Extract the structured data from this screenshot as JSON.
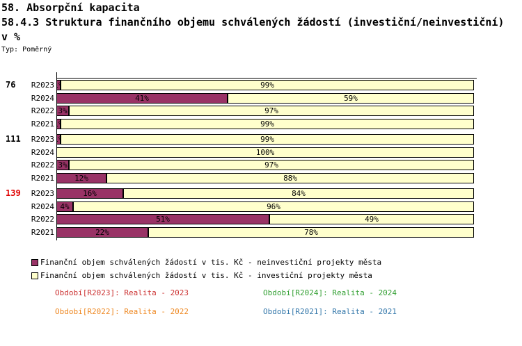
{
  "header": {
    "title": "58. Absorpční kapacita",
    "subtitle": "58.4.3 Struktura finančního objemu schválených žádostí (investiční/neinvestiční)",
    "subtitle_unit": "v %",
    "type_label": "Typ: Poměrný"
  },
  "chart_data": {
    "type": "bar",
    "orientation": "horizontal",
    "stacked": true,
    "value_unit": "%",
    "axis_range": [
      0,
      100
    ],
    "series": [
      {
        "name": "Finanční objem schválených žádostí v tis. Kč - neinvestiční projekty města",
        "color": "#993366"
      },
      {
        "name": "Finanční objem schválených žádostí v tis. Kč - investiční projekty města",
        "color": "#ffffcc"
      }
    ],
    "groups": [
      {
        "label": "76",
        "label_color": "#000000",
        "rows": [
          {
            "period": "R2023",
            "neinvesticni": 1,
            "investicni": 99
          },
          {
            "period": "R2024",
            "neinvesticni": 41,
            "investicni": 59
          },
          {
            "period": "R2022",
            "neinvesticni": 3,
            "investicni": 97
          },
          {
            "period": "R2021",
            "neinvesticni": 1,
            "investicni": 99
          }
        ]
      },
      {
        "label": "111",
        "label_color": "#000000",
        "rows": [
          {
            "period": "R2023",
            "neinvesticni": 1,
            "investicni": 99
          },
          {
            "period": "R2024",
            "neinvesticni": 0,
            "investicni": 100
          },
          {
            "period": "R2022",
            "neinvesticni": 3,
            "investicni": 97
          },
          {
            "period": "R2021",
            "neinvesticni": 12,
            "investicni": 88
          }
        ]
      },
      {
        "label": "139",
        "label_color": "#e00000",
        "rows": [
          {
            "period": "R2023",
            "neinvesticni": 16,
            "investicni": 84
          },
          {
            "period": "R2024",
            "neinvesticni": 4,
            "investicni": 96
          },
          {
            "period": "R2022",
            "neinvesticni": 51,
            "investicni": 49
          },
          {
            "period": "R2021",
            "neinvesticni": 22,
            "investicni": 78
          }
        ]
      }
    ]
  },
  "footer": {
    "periods": [
      {
        "label": "Období[R2023]: Realita - 2023",
        "color": "#cc3333",
        "col": 0,
        "row": 0
      },
      {
        "label": "Období[R2024]: Realita - 2024",
        "color": "#33a033",
        "col": 1,
        "row": 0
      },
      {
        "label": "Období[R2022]: Realita - 2022",
        "color": "#ee8822",
        "col": 0,
        "row": 1
      },
      {
        "label": "Období[R2021]: Realita - 2021",
        "color": "#3377aa",
        "col": 1,
        "row": 1
      }
    ]
  }
}
